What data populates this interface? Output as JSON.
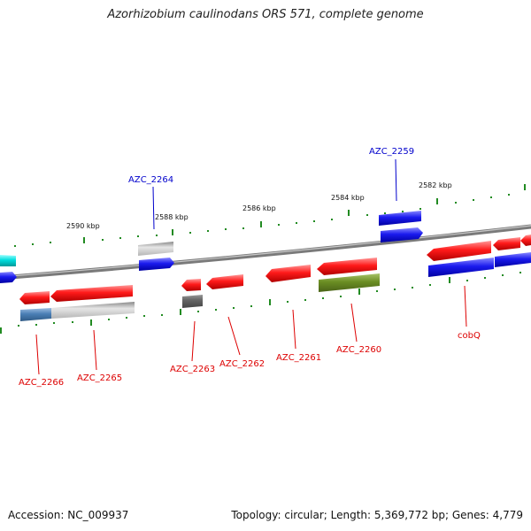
{
  "title": "Azorhizobium caulinodans ORS 571, complete genome",
  "footer": {
    "accession": "Accession: NC_009937",
    "summary": "Topology: circular; Length: 5,369,772 bp; Genes: 4,779"
  },
  "scale_labels": [
    "2590 kbp",
    "2588 kbp",
    "2586 kbp",
    "2584 kbp",
    "2582 kbp"
  ],
  "colors": {
    "red": "#ee1111",
    "blue": "#1111dd",
    "gray": "#aaaaaa",
    "darkgray": "#666666",
    "cyan": "#00cccc",
    "steelblue": "#4a7fb5",
    "olive": "#6b8e23",
    "green_tick": "#228b22",
    "label_red": "#dd0000",
    "label_blue": "#0000cc"
  },
  "gene_labels": {
    "azc2259": "AZC_2259",
    "azc2260": "AZC_2260",
    "azc2261": "AZC_2261",
    "azc2262": "AZC_2262",
    "azc2263": "AZC_2263",
    "azc2264": "AZC_2264",
    "azc2265": "AZC_2265",
    "azc2266": "AZC_2266",
    "cobq": "cobQ"
  }
}
